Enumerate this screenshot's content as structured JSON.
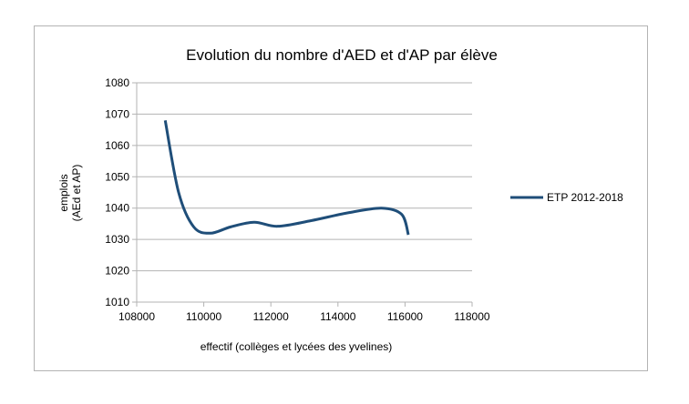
{
  "chart_data": {
    "type": "line",
    "title": "Evolution du nombre d'AED et d'AP par élève",
    "xlabel": "effectif (collèges et lycées des yvelines)",
    "ylabel_lines": [
      "emplois",
      "(AEd et AP)"
    ],
    "xlim": [
      108000,
      118000
    ],
    "ylim": [
      1010,
      1080
    ],
    "x_ticks": [
      108000,
      110000,
      112000,
      114000,
      116000,
      118000
    ],
    "y_ticks": [
      1010,
      1020,
      1030,
      1040,
      1050,
      1060,
      1070,
      1080
    ],
    "grid": "horizontal",
    "legend_position": "right",
    "series": [
      {
        "name": "ETP 2012-2018",
        "color": "#1f4e79",
        "smooth": true,
        "points": [
          {
            "x": 108850,
            "y": 1068
          },
          {
            "x": 109250,
            "y": 1045
          },
          {
            "x": 109700,
            "y": 1034
          },
          {
            "x": 110200,
            "y": 1032
          },
          {
            "x": 110800,
            "y": 1034
          },
          {
            "x": 111500,
            "y": 1035.5
          },
          {
            "x": 112200,
            "y": 1034.2
          },
          {
            "x": 113200,
            "y": 1036
          },
          {
            "x": 114300,
            "y": 1038.5
          },
          {
            "x": 115300,
            "y": 1040
          },
          {
            "x": 115900,
            "y": 1038
          },
          {
            "x": 116100,
            "y": 1031.5
          }
        ]
      }
    ]
  }
}
